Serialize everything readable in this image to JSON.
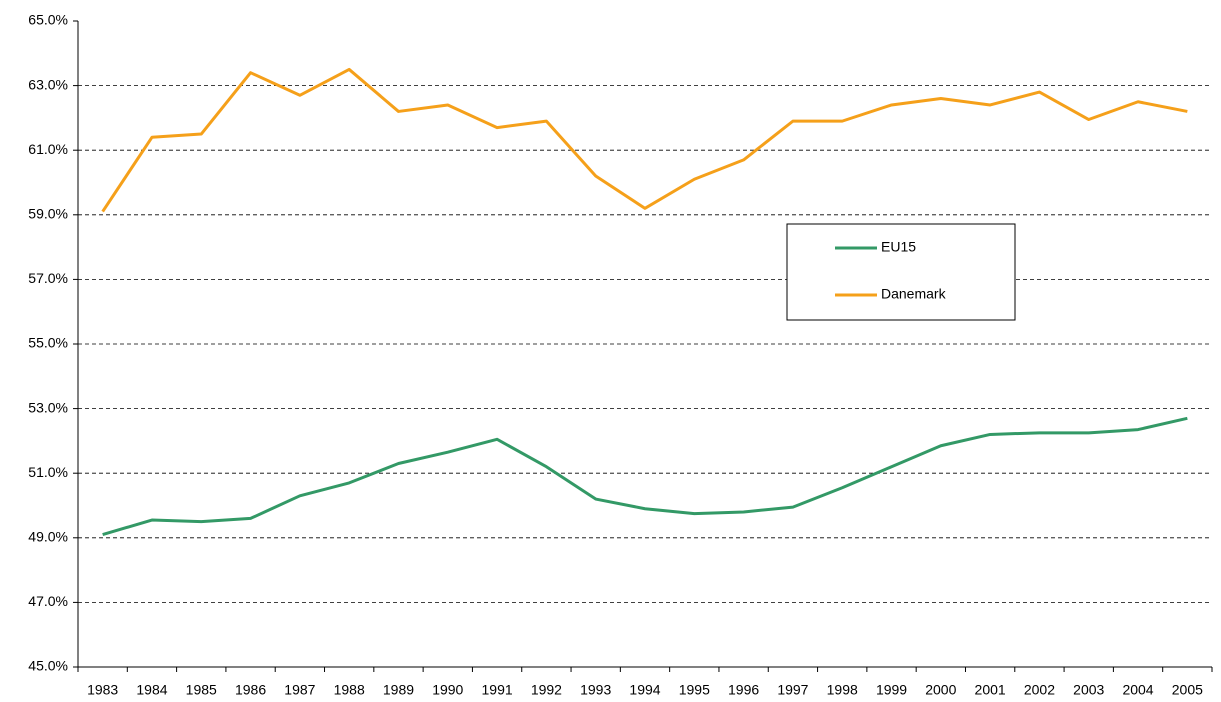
{
  "chart_data": {
    "type": "line",
    "categories": [
      "1983",
      "1984",
      "1985",
      "1986",
      "1987",
      "1988",
      "1989",
      "1990",
      "1991",
      "1992",
      "1993",
      "1994",
      "1995",
      "1996",
      "1997",
      "1998",
      "1999",
      "2000",
      "2001",
      "2002",
      "2003",
      "2004",
      "2005"
    ],
    "series": [
      {
        "name": "EU15",
        "color": "#339966",
        "values": [
          49.1,
          49.55,
          49.5,
          49.6,
          50.3,
          50.7,
          51.3,
          51.65,
          52.05,
          51.2,
          50.2,
          49.9,
          49.75,
          49.8,
          49.95,
          50.55,
          51.2,
          51.85,
          52.2,
          52.25,
          52.25,
          52.35,
          52.7
        ]
      },
      {
        "name": "Danemark",
        "color": "#f5a01a",
        "values": [
          59.1,
          61.4,
          61.5,
          63.4,
          62.7,
          63.5,
          62.2,
          62.4,
          61.7,
          61.9,
          60.2,
          59.2,
          60.1,
          60.7,
          61.9,
          61.9,
          62.4,
          62.6,
          62.4,
          62.8,
          61.95,
          62.5,
          62.2
        ]
      }
    ],
    "ylim": [
      45,
      65
    ],
    "yticks": [
      {
        "value": 45,
        "label": "45.0%"
      },
      {
        "value": 47,
        "label": "47.0%"
      },
      {
        "value": 49,
        "label": "49.0%"
      },
      {
        "value": 51,
        "label": "51.0%"
      },
      {
        "value": 53,
        "label": "53.0%"
      },
      {
        "value": 55,
        "label": "55.0%"
      },
      {
        "value": 57,
        "label": "57.0%"
      },
      {
        "value": 59,
        "label": "59.0%"
      },
      {
        "value": 61,
        "label": "61.0%"
      },
      {
        "value": 63,
        "label": "63.0%"
      },
      {
        "value": 65,
        "label": "65.0%"
      }
    ],
    "grid": true
  }
}
